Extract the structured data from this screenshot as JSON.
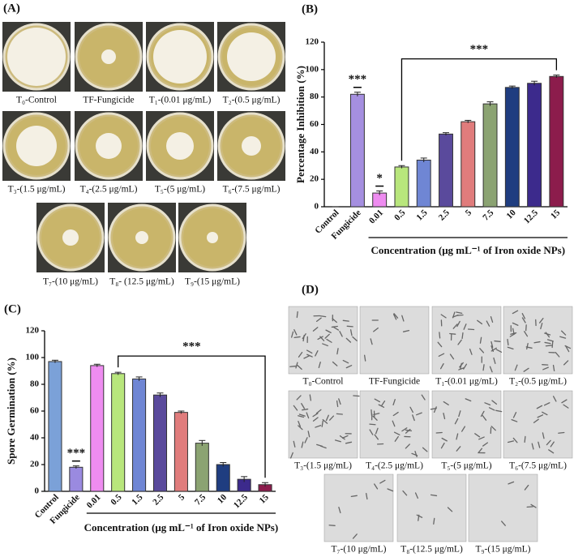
{
  "panels": {
    "A": {
      "label": "(A)",
      "captions": [
        "T₀-Control",
        "TF-Fungicide",
        "T₁-(0.01 μg/mL)",
        "T₂-(0.5 μg/mL)",
        "T₃-(1.5 μg/mL)",
        "T₄-(2.5 μg/mL)",
        "T₅-(5 μg/mL)",
        "T₆-(7.5 μg/mL)",
        "T₇-(10 μg/mL)",
        "T₈- (12.5 μg/mL)",
        "T₉-(15 μg/mL)"
      ]
    },
    "D": {
      "label": "(D)",
      "captions": [
        "T₀-Control",
        "TF-Fungicide",
        "T₁-(0.01 μg/mL)",
        "T₂-(0.5 μg/mL)",
        "T₃-(1.5 μg/mL)",
        "T₄-(2.5 μg/mL)",
        "T₅-(5 μg/mL)",
        "T₆-(7.5 μg/mL)",
        "T₇-(10 μg/mL)",
        "T₈-(12.5 μg/mL)",
        "T₉-(15 μg/mL)"
      ]
    }
  },
  "chart_data": [
    {
      "type": "bar",
      "label": "(B)",
      "y_label": "Percentage Inhibition (%)",
      "x_label": "Concentration (μg mL⁻¹ of Iron oxide NPs)",
      "categories": [
        "Control",
        "Fungicide",
        "0.01",
        "0.5",
        "1.5",
        "2.5",
        "5",
        "7.5",
        "10",
        "12.5",
        "15"
      ],
      "values": [
        0,
        82,
        10,
        29,
        34,
        53,
        62,
        75,
        87,
        90,
        95
      ],
      "errors": [
        0,
        1.5,
        1.5,
        1,
        1.5,
        1,
        1,
        1.5,
        1,
        1.5,
        1
      ],
      "colors": [
        "#ffffff",
        "#a58fe0",
        "#ee8cf0",
        "#b8e67c",
        "#6f86d4",
        "#5a4a9c",
        "#e07c7c",
        "#8ba372",
        "#1f3d80",
        "#3c2a8c",
        "#8c1c4c"
      ],
      "ylim": [
        0,
        120
      ],
      "yticks": [
        0,
        20,
        40,
        60,
        80,
        100,
        120
      ],
      "annotations": [
        {
          "text": "***",
          "category": "Fungicide"
        },
        {
          "text": "*",
          "category": "0.01"
        }
      ],
      "bracket": {
        "text": "***",
        "from": "0.5",
        "to": "15"
      },
      "underline_from": "0.01"
    },
    {
      "type": "bar",
      "label": "(C)",
      "y_label": "Spore Germination (%)",
      "x_label": "Concentration (μg mL⁻¹ of Iron oxide NPs)",
      "categories": [
        "Control",
        "Fungicide",
        "0.01",
        "0.5",
        "1.5",
        "2.5",
        "5",
        "7.5",
        "10",
        "12.5",
        "15"
      ],
      "values": [
        97,
        18,
        94,
        88,
        84,
        72,
        59,
        36,
        20,
        9,
        5
      ],
      "errors": [
        1,
        1,
        1,
        1,
        1.5,
        1.5,
        1,
        2,
        1.5,
        2,
        1.5
      ],
      "colors": [
        "#7ba1d8",
        "#9a8ae0",
        "#ee8cf0",
        "#b8e67c",
        "#6f86d4",
        "#5a4a9c",
        "#e07c7c",
        "#8ba372",
        "#1f3d80",
        "#3c2a8c",
        "#8c1c4c"
      ],
      "ylim": [
        0,
        120
      ],
      "yticks": [
        0,
        20,
        40,
        60,
        80,
        100,
        120
      ],
      "annotations": [
        {
          "text": "***",
          "category": "Fungicide"
        }
      ],
      "bracket": {
        "text": "***",
        "from": "0.5",
        "to": "15"
      },
      "underline_from": "0.01"
    }
  ]
}
